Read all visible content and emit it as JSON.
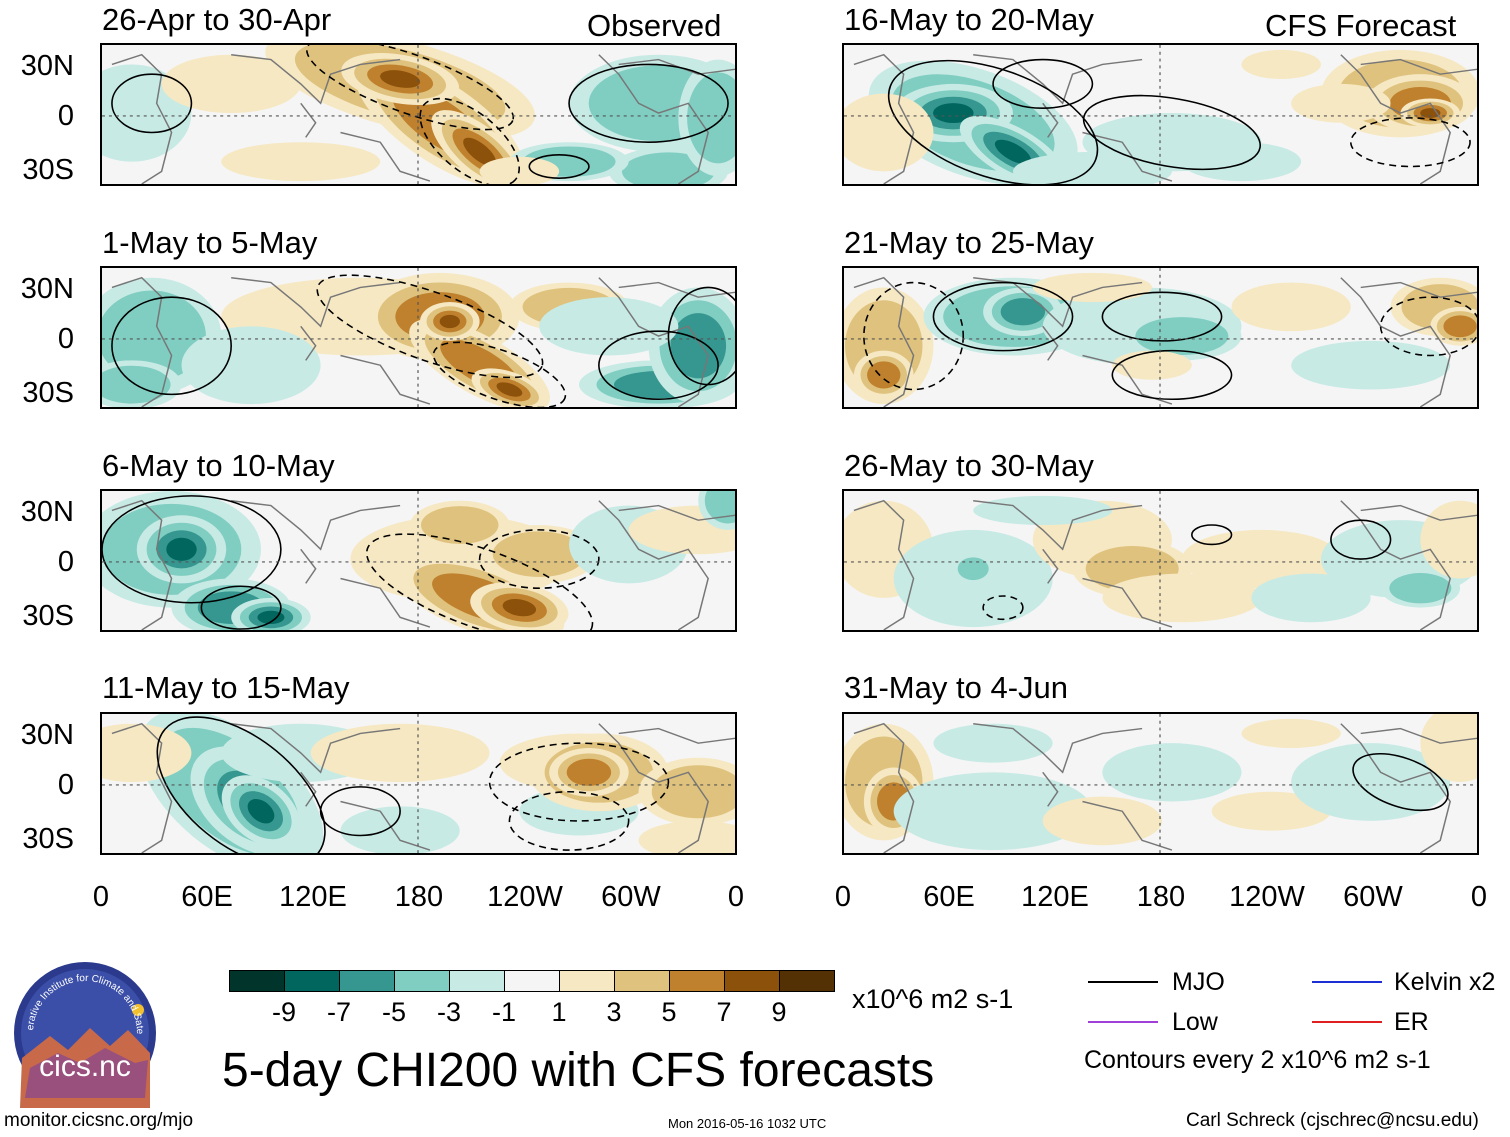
{
  "column_labels": {
    "left": "Observed",
    "right": "CFS Forecast"
  },
  "panels": [
    {
      "title": "26-Apr to 30-Apr",
      "col": 0,
      "row": 0
    },
    {
      "title": "1-May to 5-May",
      "col": 0,
      "row": 1
    },
    {
      "title": "6-May to 10-May",
      "col": 0,
      "row": 2
    },
    {
      "title": "11-May to 15-May",
      "col": 0,
      "row": 3
    },
    {
      "title": "16-May to 20-May",
      "col": 1,
      "row": 0
    },
    {
      "title": "21-May to 25-May",
      "col": 1,
      "row": 1
    },
    {
      "title": "26-May to 30-May",
      "col": 1,
      "row": 2
    },
    {
      "title": "31-May to 4-Jun",
      "col": 1,
      "row": 3
    }
  ],
  "lat_labels": [
    "30N",
    "0",
    "30S"
  ],
  "lon_labels": [
    "0",
    "60E",
    "120E",
    "180",
    "120W",
    "60W",
    "0"
  ],
  "colorbar": {
    "colors": [
      "#01352b",
      "#01665e",
      "#35978f",
      "#80cdc1",
      "#c7eae5",
      "#f5f5f5",
      "#f6e8c3",
      "#dfc27d",
      "#bf812d",
      "#8c510a",
      "#543005"
    ],
    "ticks": [
      "-9",
      "-7",
      "-5",
      "-3",
      "-1",
      "1",
      "3",
      "5",
      "7",
      "9"
    ],
    "units": "x10^6 m2 s-1"
  },
  "legend": {
    "items": [
      {
        "label": "MJO",
        "color": "#000000"
      },
      {
        "label": "Kelvin x2",
        "color": "#1c2fd6"
      },
      {
        "label": "Low",
        "color": "#a23fd8"
      },
      {
        "label": "ER",
        "color": "#e02020"
      }
    ],
    "contour_note": "Contours every 2 x10^6 m2 s-1"
  },
  "title": "5-day CHI200 with CFS forecasts",
  "logo_text": "cics.nc",
  "logo_ring_text": "Cooperative Institute for Climate and Satellites",
  "footer": {
    "url": "monitor.cicsnc.org/mjo",
    "timestamp": "Mon 2016-05-16 1032 UTC",
    "author": "Carl Schreck (cjschrec@ncsu.edu)"
  }
}
